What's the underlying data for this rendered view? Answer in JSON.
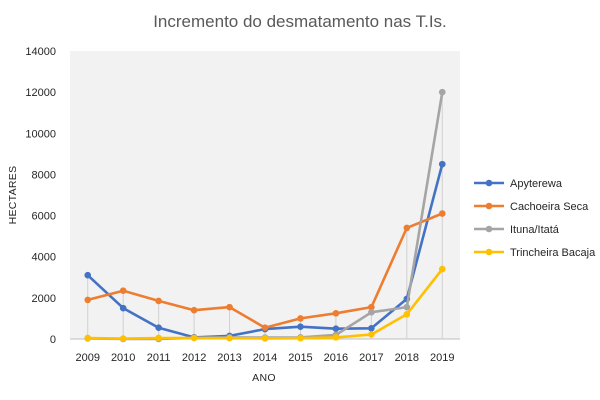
{
  "chart_data": {
    "type": "line",
    "title": "Incremento do desmatamento  nas T.Is.",
    "xlabel": "ANO",
    "ylabel": "HECTARES",
    "x": [
      "2009",
      "2010",
      "2011",
      "2012",
      "2013",
      "2014",
      "2015",
      "2016",
      "2017",
      "2018",
      "2019"
    ],
    "ylim": [
      0,
      14000
    ],
    "yticks": [
      "0",
      "2000",
      "4000",
      "6000",
      "8000",
      "10000",
      "12000",
      "14000"
    ],
    "grid": false,
    "plot_background": "#f2f2f2",
    "legend_position": "right",
    "series": [
      {
        "name": "Apyterewa",
        "color": "#4472c4",
        "values": [
          3100,
          1500,
          550,
          80,
          150,
          480,
          600,
          500,
          520,
          1950,
          8500
        ]
      },
      {
        "name": "Cachoeira Seca",
        "color": "#ed7d31",
        "values": [
          1900,
          2350,
          1850,
          1400,
          1550,
          550,
          1000,
          1250,
          1550,
          5400,
          6100
        ]
      },
      {
        "name": "Ituna/Itatá",
        "color": "#a5a5a5",
        "values": [
          30,
          0,
          0,
          60,
          80,
          70,
          80,
          200,
          1300,
          1550,
          12000
        ]
      },
      {
        "name": "Trincheira Bacaja",
        "color": "#ffc000",
        "values": [
          50,
          20,
          50,
          50,
          40,
          30,
          40,
          80,
          220,
          1200,
          3400
        ]
      }
    ]
  }
}
